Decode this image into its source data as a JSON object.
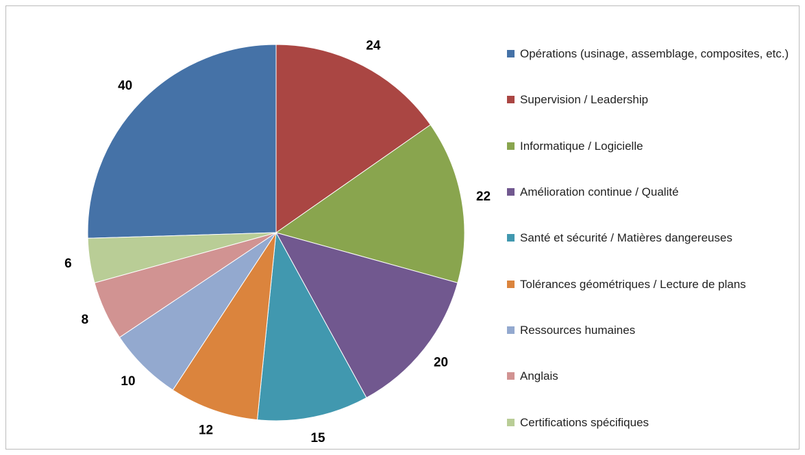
{
  "chart_data": {
    "type": "pie",
    "categories": [
      "Opérations (usinage, assemblage, composites, etc.)",
      "Supervision / Leadership",
      "Informatique / Logicielle",
      "Amélioration continue / Qualité",
      "Santé et sécurité / Matières dangereuses",
      "Tolérances géométriques / Lecture de plans",
      "Ressources humaines",
      "Anglais",
      "Certifications spécifiques"
    ],
    "values": [
      40,
      24,
      22,
      20,
      15,
      12,
      10,
      8,
      6
    ],
    "colors": [
      "#4572a7",
      "#aa4643",
      "#89a54e",
      "#71588f",
      "#4198af",
      "#db843d",
      "#93a9cf",
      "#d19392",
      "#b9cd96"
    ],
    "legend": "right"
  }
}
